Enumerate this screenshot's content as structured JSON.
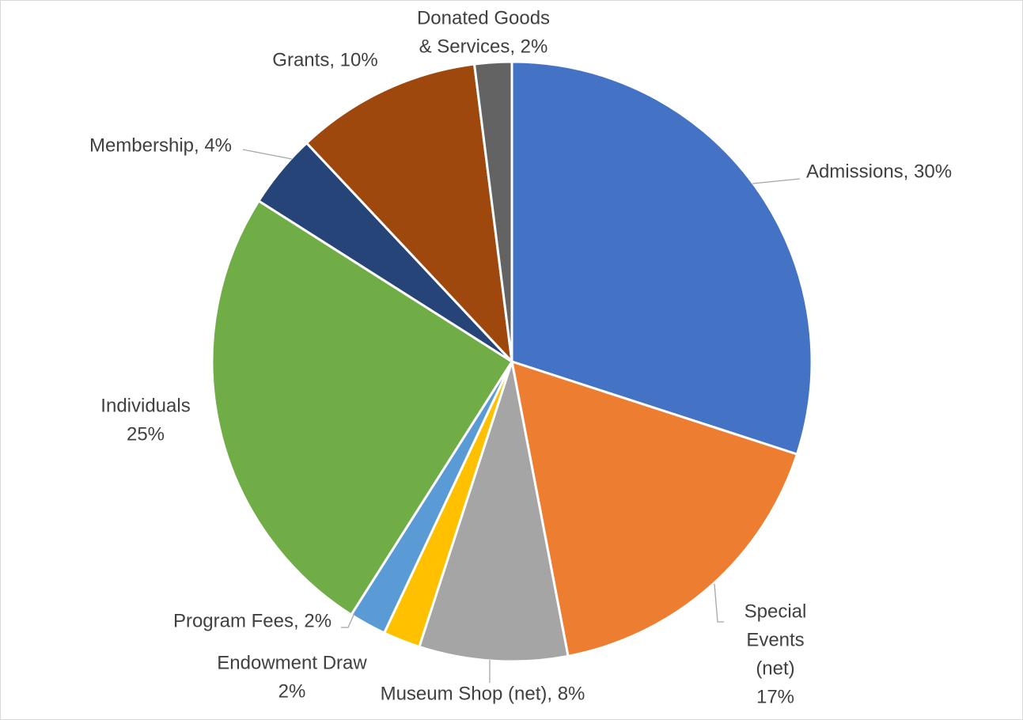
{
  "chart_data": {
    "type": "pie",
    "title": "",
    "start_angle_deg": 0,
    "direction": "clockwise",
    "slices": [
      {
        "key": "admissions",
        "name": "Admissions",
        "value": 30,
        "color": "#4472C4",
        "label_lines": [
          "Admissions, 30%"
        ]
      },
      {
        "key": "special-events",
        "name": "Special Events (net)",
        "value": 17,
        "color": "#ED7D31",
        "label_lines": [
          "Special",
          "Events",
          "(net)",
          "17%"
        ]
      },
      {
        "key": "museum-shop",
        "name": "Museum Shop (net)",
        "value": 8,
        "color": "#A5A5A5",
        "label_lines": [
          "Museum Shop (net), 8%"
        ]
      },
      {
        "key": "endowment-draw",
        "name": "Endowment Draw",
        "value": 2,
        "color": "#FFC000",
        "label_lines": [
          "Endowment Draw",
          "2%"
        ]
      },
      {
        "key": "program-fees",
        "name": "Program Fees",
        "value": 2,
        "color": "#5B9BD5",
        "label_lines": [
          "Program Fees, 2%"
        ]
      },
      {
        "key": "individuals",
        "name": "Individuals",
        "value": 25,
        "color": "#70AD47",
        "label_lines": [
          "Individuals",
          "25%"
        ]
      },
      {
        "key": "membership",
        "name": "Membership",
        "value": 4,
        "color": "#264478",
        "label_lines": [
          "Membership, 4%"
        ]
      },
      {
        "key": "grants",
        "name": "Grants",
        "value": 10,
        "color": "#9E480E",
        "label_lines": [
          "Grants, 10%"
        ]
      },
      {
        "key": "donated-goods",
        "name": "Donated Goods & Services",
        "value": 2,
        "color": "#636363",
        "label_lines": [
          "Donated Goods",
          "& Services, 2%"
        ]
      }
    ]
  }
}
